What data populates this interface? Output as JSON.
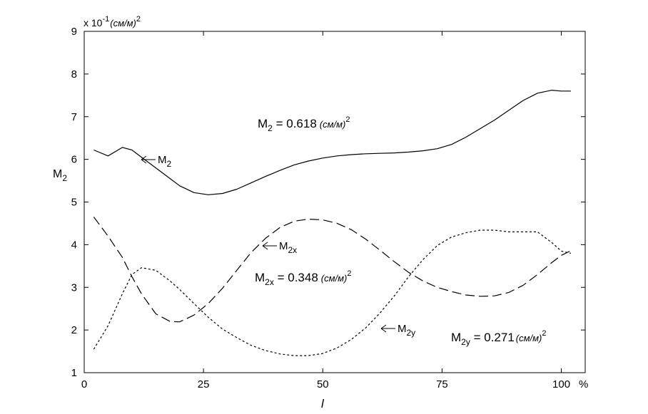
{
  "chart_data": {
    "type": "line",
    "x": [
      2,
      5,
      8,
      10,
      12,
      15,
      18,
      20,
      23,
      26,
      29,
      32,
      35,
      38,
      41,
      44,
      47,
      50,
      53,
      56,
      59,
      62,
      65,
      68,
      71,
      74,
      77,
      80,
      83,
      86,
      89,
      92,
      95,
      98,
      100,
      102
    ],
    "series": [
      {
        "name": "M2",
        "color": "#000000",
        "dash": "solid",
        "values": [
          6.22,
          6.08,
          6.28,
          6.22,
          6.05,
          5.8,
          5.55,
          5.38,
          5.22,
          5.17,
          5.2,
          5.3,
          5.45,
          5.6,
          5.74,
          5.87,
          5.96,
          6.03,
          6.08,
          6.11,
          6.13,
          6.14,
          6.15,
          6.17,
          6.2,
          6.25,
          6.35,
          6.52,
          6.72,
          6.92,
          7.15,
          7.38,
          7.55,
          7.62,
          7.6,
          7.6
        ]
      },
      {
        "name": "M2x",
        "color": "#000000",
        "dash": "long",
        "values": [
          4.65,
          4.2,
          3.7,
          3.25,
          2.85,
          2.38,
          2.2,
          2.19,
          2.35,
          2.62,
          2.98,
          3.4,
          3.82,
          4.15,
          4.4,
          4.55,
          4.6,
          4.58,
          4.5,
          4.35,
          4.13,
          3.87,
          3.6,
          3.35,
          3.15,
          3.0,
          2.9,
          2.82,
          2.79,
          2.8,
          2.88,
          3.05,
          3.3,
          3.58,
          3.75,
          3.86
        ]
      },
      {
        "name": "M2y",
        "color": "#000000",
        "dash": "short",
        "values": [
          1.55,
          2.1,
          2.85,
          3.3,
          3.46,
          3.4,
          3.15,
          2.95,
          2.62,
          2.3,
          2.02,
          1.82,
          1.64,
          1.52,
          1.44,
          1.4,
          1.4,
          1.45,
          1.58,
          1.78,
          2.05,
          2.4,
          2.8,
          3.25,
          3.65,
          3.98,
          4.18,
          4.28,
          4.34,
          4.34,
          4.3,
          4.3,
          4.3,
          4.05,
          3.85,
          3.8
        ]
      }
    ],
    "xlim": [
      0,
      105
    ],
    "ylim": [
      1,
      9
    ],
    "x_ticks": [
      0,
      25,
      50,
      75,
      100
    ],
    "x_tick_labels": [
      "0",
      "25",
      "50",
      "75",
      "100"
    ],
    "x_tick_suffix": "%",
    "y_ticks": [
      1,
      2,
      3,
      4,
      5,
      6,
      7,
      8,
      9
    ],
    "y_tick_labels": [
      "1",
      "2",
      "3",
      "4",
      "5",
      "6",
      "7",
      "8",
      "9"
    ],
    "xlabel": "l",
    "ylabel": {
      "main": "M",
      "sub": "2"
    },
    "y_multiplier": {
      "prefix": "x 10",
      "exp": "-1",
      "unit": "(см/м)",
      "unit_exp": "2"
    },
    "grid": false,
    "annotations": [
      {
        "id": "m2-arrow",
        "main": "M",
        "sub": "2",
        "x": 11,
        "y": 6.02
      },
      {
        "id": "m2x-arrow",
        "main": "M",
        "sub": "2x",
        "x": 36,
        "y": 3.98
      },
      {
        "id": "m2y-arrow",
        "main": "M",
        "sub": "2y",
        "x": 62,
        "y": 2.08
      }
    ],
    "values_text": [
      {
        "id": "m2-value",
        "main": "M",
        "sub": "2",
        "rest": " = 0.618",
        "unit": "(см/м)",
        "exp": "2"
      },
      {
        "id": "m2x-value",
        "main": "M",
        "sub": "2x",
        "rest": " = 0.348",
        "unit": "(см/м)",
        "exp": "2"
      },
      {
        "id": "m2y-value",
        "main": "M",
        "sub": "2y",
        "rest": " = 0.271",
        "unit": "(см/м)",
        "exp": "2"
      }
    ]
  }
}
